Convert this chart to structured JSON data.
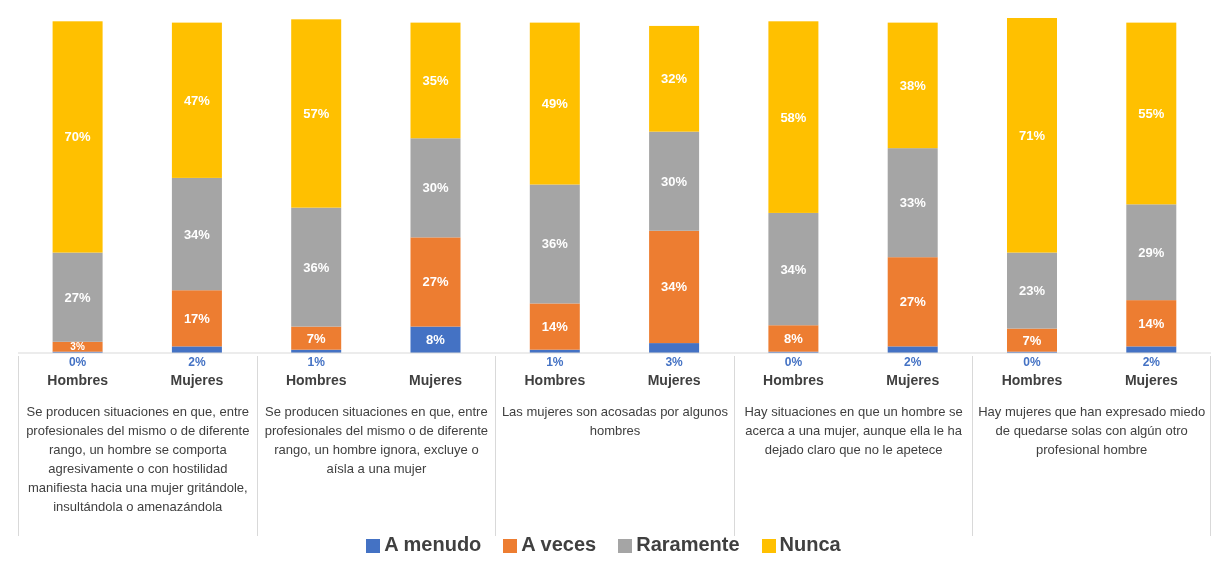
{
  "chart_data": {
    "type": "bar",
    "stacked": true,
    "legend": "bottom",
    "grid": false,
    "categories": [
      "Hombres",
      "Mujeres",
      "Hombres",
      "Mujeres",
      "Hombres",
      "Mujeres",
      "Hombres",
      "Mujeres",
      "Hombres",
      "Mujeres"
    ],
    "annotations": [
      "Se producen situaciones en que, entre profesionales del mismo o de diferente rango, un hombre se comporta agresivamente o con hostilidad manifiesta hacia una mujer gritándole, insultándola o amenazándola",
      "Se producen situaciones en que, entre profesionales del mismo o de diferente rango, un hombre ignora, excluye o aísla a una mujer",
      "Las mujeres son acosadas por algunos hombres",
      "Hay situaciones en que un hombre se acerca a una mujer, aunque ella le ha dejado claro que no le apetece",
      "Hay mujeres que han expresado miedo de quedarse solas con algún otro profesional hombre"
    ],
    "series": [
      {
        "name": "A menudo",
        "color": "#4472c4",
        "values": [
          0.4,
          2,
          1,
          8,
          1,
          3,
          0.4,
          2,
          0.4,
          2
        ],
        "value_labels": [
          "0%",
          "2%",
          "1%",
          "8%",
          "1%",
          "3%",
          "0%",
          "2%",
          "0%",
          "2%"
        ]
      },
      {
        "name": "A veces",
        "color": "#ed7d31",
        "values": [
          3,
          17,
          7,
          27,
          14,
          34,
          8,
          27,
          7,
          14
        ],
        "value_labels": [
          "3%",
          "17%",
          "7%",
          "27%",
          "14%",
          "34%",
          "8%",
          "27%",
          "7%",
          "14%"
        ]
      },
      {
        "name": "Raramente",
        "color": "#a5a5a5",
        "values": [
          27,
          34,
          36,
          30,
          36,
          30,
          34,
          33,
          23,
          29
        ],
        "value_labels": [
          "27%",
          "34%",
          "36%",
          "30%",
          "36%",
          "30%",
          "34%",
          "33%",
          "23%",
          "29%"
        ]
      },
      {
        "name": "Nunca",
        "color": "#ffc000",
        "values": [
          70,
          47,
          57,
          35,
          49,
          32,
          58,
          38,
          71,
          55
        ],
        "value_labels": [
          "70%",
          "47%",
          "57%",
          "35%",
          "49%",
          "32%",
          "58%",
          "38%",
          "71%",
          "55%"
        ]
      }
    ]
  }
}
